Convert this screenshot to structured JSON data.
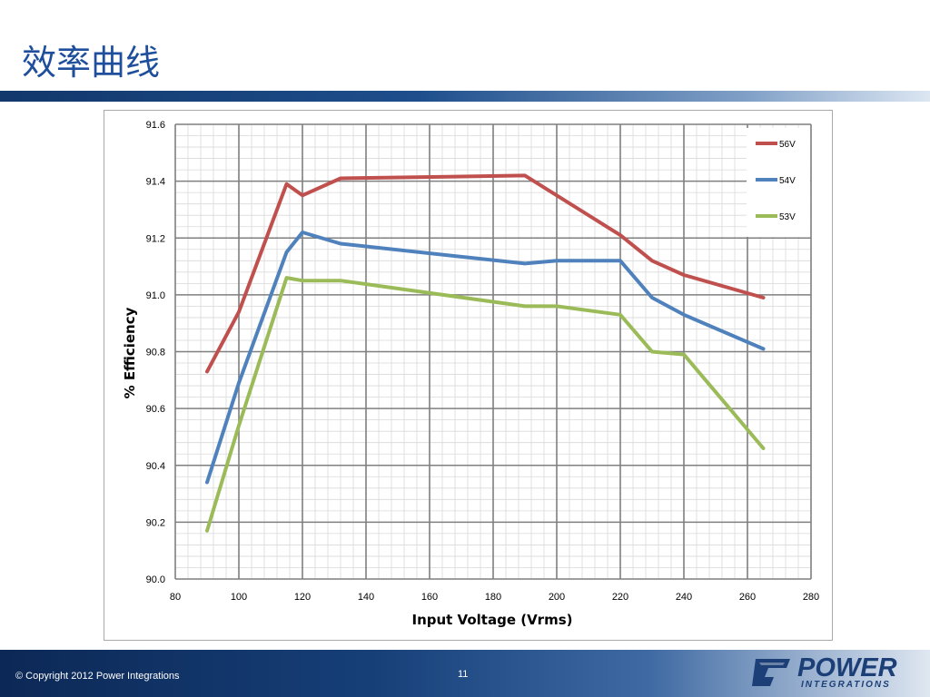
{
  "slide": {
    "title": "效率曲线",
    "copyright": "© Copyright 2012 Power Integrations",
    "page_number": "11",
    "logo": {
      "word1": "POWER",
      "word2": "INTEGRATIONS",
      "icon": "power-integrations-logo-icon"
    }
  },
  "colors": {
    "title": "#1f4f9c",
    "56V": "#c0504d",
    "54V": "#4f81bd",
    "53V": "#9bbb59"
  },
  "chart_data": {
    "type": "line",
    "title": "",
    "xlabel": "Input Voltage (Vrms)",
    "ylabel": "% Efficiency",
    "xlim": [
      80,
      280
    ],
    "ylim": [
      90.0,
      91.6
    ],
    "x_ticks": [
      "80",
      "100",
      "120",
      "140",
      "160",
      "180",
      "200",
      "220",
      "240",
      "260",
      "280"
    ],
    "y_ticks": [
      "90.0",
      "90.2",
      "90.4",
      "90.6",
      "90.8",
      "91.0",
      "91.2",
      "91.4",
      "91.6"
    ],
    "grid": true,
    "legend_position": "top-right",
    "series": [
      {
        "name": "56V",
        "color": "#c0504d",
        "x": [
          90,
          100,
          115,
          120,
          132,
          190,
          200,
          220,
          230,
          240,
          265
        ],
        "y": [
          90.73,
          90.94,
          91.39,
          91.35,
          91.41,
          91.42,
          91.35,
          91.21,
          91.12,
          91.07,
          90.99
        ]
      },
      {
        "name": "54V",
        "color": "#4f81bd",
        "x": [
          90,
          100,
          115,
          120,
          132,
          190,
          200,
          220,
          230,
          240,
          265
        ],
        "y": [
          90.34,
          90.69,
          91.15,
          91.22,
          91.18,
          91.11,
          91.12,
          91.12,
          90.99,
          90.93,
          90.81
        ]
      },
      {
        "name": "53V",
        "color": "#9bbb59",
        "x": [
          90,
          100,
          115,
          120,
          132,
          190,
          200,
          220,
          230,
          240,
          265
        ],
        "y": [
          90.17,
          90.54,
          91.06,
          91.05,
          91.05,
          90.96,
          90.96,
          90.93,
          90.8,
          90.79,
          90.46
        ]
      }
    ]
  }
}
